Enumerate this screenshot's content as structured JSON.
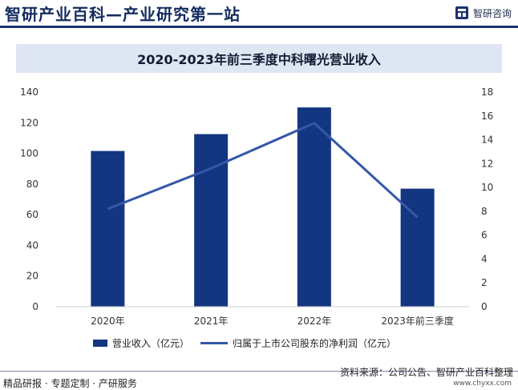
{
  "header": {
    "brand_title": "智研产业百科—产业研究第一站",
    "logo_text": "智研咨询"
  },
  "chart_data": {
    "type": "bar",
    "title": "2020-2023年前三季度中科曙光营业收入",
    "categories": [
      "2020年",
      "2021年",
      "2022年",
      "2023年前三季度"
    ],
    "series": [
      {
        "name": "营业收入（亿元）",
        "type": "bar",
        "axis": "left",
        "values": [
          101.6,
          112.6,
          130.0,
          77.0
        ]
      },
      {
        "name": "归属于上市公司股东的净利润（亿元）",
        "type": "line",
        "axis": "right",
        "values": [
          8.2,
          11.6,
          15.4,
          7.5
        ]
      }
    ],
    "ylim": [
      0,
      140
    ],
    "y_ticks": [
      "0",
      "20",
      "40",
      "60",
      "80",
      "100",
      "120",
      "140"
    ],
    "y2lim": [
      0,
      18
    ],
    "y2_ticks": [
      "0",
      "2",
      "4",
      "6",
      "8",
      "10",
      "12",
      "14",
      "16",
      "18"
    ],
    "grid": false,
    "legend_position": "bottom",
    "colors": {
      "bar": "#143580",
      "line": "#3458a8"
    }
  },
  "footer": {
    "left_text": "精品研报 · 专题定制 · 产研服务",
    "source_text": "资料来源：公司公告、智研产业百科整理",
    "url_text": "www.chyxx.com"
  }
}
